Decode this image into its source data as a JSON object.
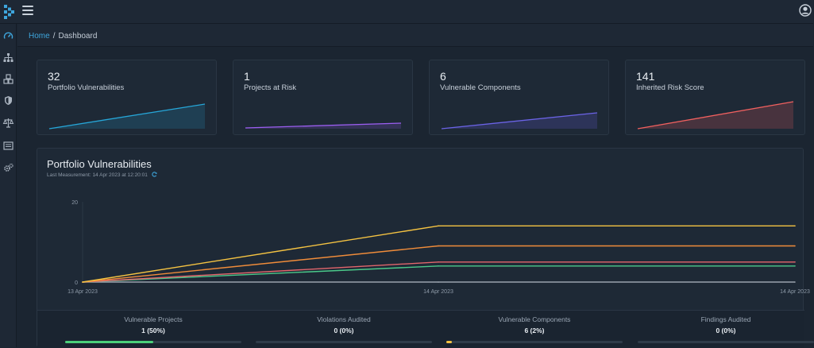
{
  "header": {
    "logo": "dependency-track-logo",
    "menu_icon": "hamburger-icon",
    "user_icon": "user-avatar-icon"
  },
  "sidebar": {
    "items": [
      {
        "icon": "dashboard-gauge-icon",
        "active": true
      },
      {
        "icon": "projects-sitemap-icon"
      },
      {
        "icon": "components-cubes-icon"
      },
      {
        "icon": "vulnerabilities-shield-icon"
      },
      {
        "icon": "licenses-balance-icon"
      },
      {
        "icon": "policy-list-icon"
      },
      {
        "icon": "admin-cogs-icon"
      }
    ]
  },
  "breadcrumb": {
    "home": "Home",
    "current": "Dashboard"
  },
  "cards": [
    {
      "count": "32",
      "label": "Portfolio Vulnerabilities",
      "color": "#26a6d8"
    },
    {
      "count": "1",
      "label": "Projects at Risk",
      "color": "#9b5ef0"
    },
    {
      "count": "6",
      "label": "Vulnerable Components",
      "color": "#6b63e6"
    },
    {
      "count": "141",
      "label": "Inherited Risk Score",
      "color": "#f0605f"
    }
  ],
  "portfolio": {
    "title": "Portfolio Vulnerabilities",
    "last_measurement": "Last Measurement: 14 Apr 2023 at 12:20:01"
  },
  "chart_data": {
    "type": "line",
    "x": [
      "13 Apr 2023",
      "14 Apr 2023",
      "14 Apr 2023"
    ],
    "yticks": [
      0,
      20
    ],
    "ylim": [
      0,
      20
    ],
    "grid": false,
    "series": [
      {
        "color": "#f5c342",
        "values": [
          0,
          14,
          14
        ]
      },
      {
        "color": "#f08c3a",
        "values": [
          0,
          9,
          9
        ]
      },
      {
        "color": "#e2666c",
        "values": [
          0,
          5,
          5
        ]
      },
      {
        "color": "#4bc98a",
        "values": [
          0,
          4,
          4
        ]
      },
      {
        "color": "#9aa3ad",
        "values": [
          0,
          0,
          0
        ]
      }
    ]
  },
  "stats": [
    {
      "label": "Vulnerable Projects",
      "value": "1 (50%)",
      "percent": 50,
      "color": "#4bd07a"
    },
    {
      "label": "Violations Audited",
      "value": "0 (0%)",
      "percent": 0,
      "color": "#4bd07a"
    },
    {
      "label": "Vulnerable Components",
      "value": "6 (2%)",
      "percent": 2,
      "color": "#f5c342"
    },
    {
      "label": "Findings Audited",
      "value": "0 (0%)",
      "percent": 0,
      "color": "#4bd07a"
    }
  ]
}
